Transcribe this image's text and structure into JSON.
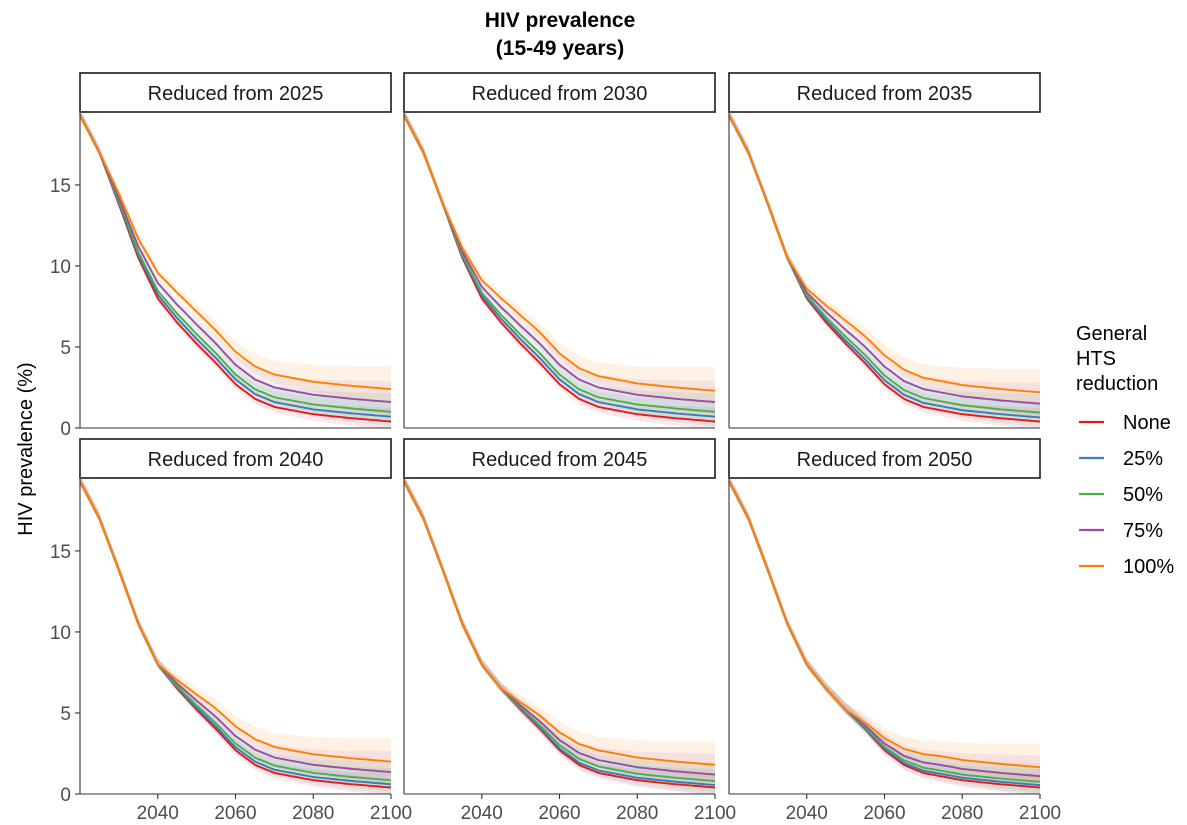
{
  "chart_data": {
    "type": "line",
    "title": "HIV prevalence",
    "subtitle": "(15-49 years)",
    "ylabel": "HIV prevalence (%)",
    "xlabel": "",
    "xlim": [
      2020,
      2100
    ],
    "ylim": [
      0,
      19.5
    ],
    "x_ticks": [
      2040,
      2060,
      2080,
      2100
    ],
    "y_ticks": [
      0,
      5,
      10,
      15
    ],
    "grid": false,
    "legend": {
      "title": [
        "General",
        "HTS",
        "reduction"
      ],
      "position": "right",
      "entries": [
        "None",
        "25%",
        "50%",
        "75%",
        "100%"
      ]
    },
    "colors": {
      "None": "#e41a1c",
      "25%": "#377eb8",
      "50%": "#4daf4a",
      "75%": "#984ea3",
      "100%": "#ff7f00"
    },
    "panels": [
      {
        "label": "Reduced from 2025",
        "start": 2025,
        "end": {
          "None": 0.4,
          "25%": 0.7,
          "50%": 1.0,
          "75%": 1.6,
          "100%": 2.4
        }
      },
      {
        "label": "Reduced from 2030",
        "start": 2030,
        "end": {
          "None": 0.4,
          "25%": 0.7,
          "50%": 1.0,
          "75%": 1.6,
          "100%": 2.3
        }
      },
      {
        "label": "Reduced from 2035",
        "start": 2035,
        "end": {
          "None": 0.4,
          "25%": 0.65,
          "50%": 0.95,
          "75%": 1.5,
          "100%": 2.2
        }
      },
      {
        "label": "Reduced from 2040",
        "start": 2040,
        "end": {
          "None": 0.4,
          "25%": 0.6,
          "50%": 0.85,
          "75%": 1.35,
          "100%": 2.0
        }
      },
      {
        "label": "Reduced from 2045",
        "start": 2045,
        "end": {
          "None": 0.4,
          "25%": 0.55,
          "50%": 0.8,
          "75%": 1.2,
          "100%": 1.8
        }
      },
      {
        "label": "Reduced from 2050",
        "start": 2050,
        "end": {
          "None": 0.4,
          "25%": 0.55,
          "50%": 0.75,
          "75%": 1.1,
          "100%": 1.65
        }
      }
    ],
    "baseline": {
      "x": [
        2020,
        2025,
        2030,
        2035,
        2040,
        2045,
        2050,
        2055,
        2060,
        2065,
        2070,
        2080,
        2090,
        2100
      ],
      "y": [
        19.3,
        17.0,
        13.8,
        10.5,
        8.0,
        6.5,
        5.2,
        4.0,
        2.7,
        1.8,
        1.3,
        0.85,
        0.6,
        0.4
      ]
    }
  }
}
